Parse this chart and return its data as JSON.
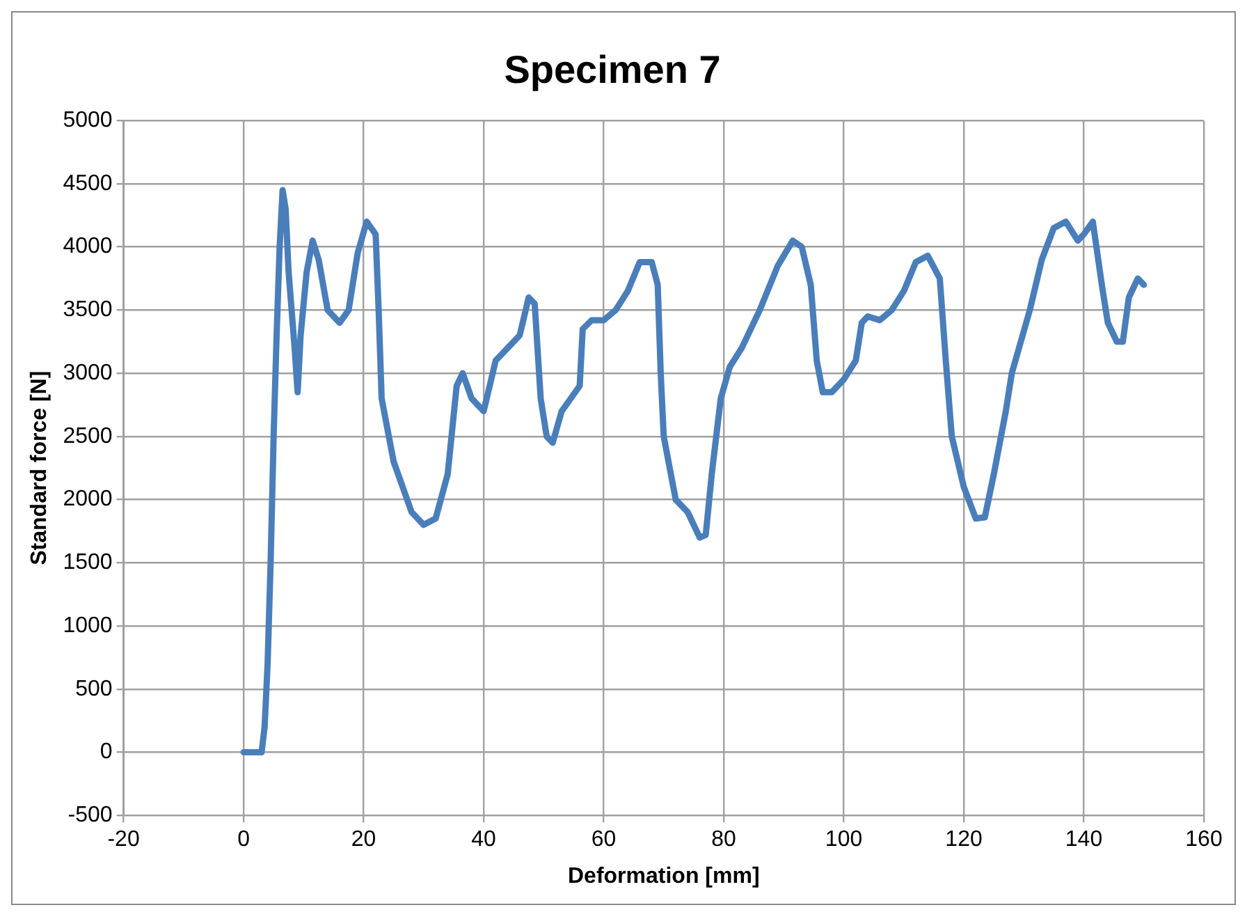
{
  "chart_data": {
    "type": "line",
    "title": "Specimen 7",
    "xlabel": "Deformation [mm]",
    "ylabel": "Standard force [N]",
    "xlim": [
      -20,
      160
    ],
    "xticks": [
      -20,
      0,
      20,
      40,
      60,
      80,
      100,
      120,
      140,
      160
    ],
    "ylim": [
      -500,
      5000
    ],
    "yticks": [
      -500,
      0,
      500,
      1000,
      1500,
      2000,
      2500,
      3000,
      3500,
      4000,
      4500,
      5000
    ],
    "grid": true,
    "legend": false,
    "marker": "none",
    "line_style": "solid",
    "series": [
      {
        "color": "#4a7ebb",
        "x": [
          0,
          3,
          3.5,
          4,
          4.5,
          5,
          5.5,
          6,
          6.5,
          7,
          7.5,
          8.5,
          9,
          9.5,
          10.5,
          11.5,
          12.5,
          14,
          16,
          17.5,
          19,
          20.5,
          22,
          22.5,
          23,
          25,
          28,
          30,
          32,
          34,
          35.5,
          36.5,
          38,
          40,
          42,
          44,
          46,
          47.5,
          48.5,
          49.5,
          50.5,
          51.5,
          53,
          56,
          56.5,
          58,
          60,
          62,
          64,
          66,
          68,
          69,
          69.5,
          70,
          72,
          74,
          76,
          77,
          78,
          79.5,
          81,
          83,
          86,
          89,
          91.5,
          93,
          94.5,
          95.5,
          96.5,
          98,
          100,
          102,
          103,
          104,
          106,
          108,
          110,
          112,
          114,
          116,
          117,
          118,
          120,
          122,
          123.5,
          125,
          127,
          128,
          131,
          133,
          135,
          137,
          139,
          140,
          141.5,
          143,
          144,
          145.5,
          146.5,
          147.5,
          149,
          150
        ],
        "values": [
          0,
          0,
          200,
          700,
          1500,
          2500,
          3300,
          4000,
          4450,
          4300,
          3800,
          3200,
          2850,
          3300,
          3800,
          4050,
          3900,
          3500,
          3400,
          3500,
          3950,
          4200,
          4100,
          3500,
          2800,
          2300,
          1900,
          1800,
          1850,
          2200,
          2900,
          3000,
          2800,
          2700,
          3100,
          3200,
          3300,
          3600,
          3550,
          2800,
          2500,
          2450,
          2700,
          2900,
          3350,
          3420,
          3420,
          3500,
          3650,
          3880,
          3880,
          3700,
          3000,
          2500,
          2000,
          1900,
          1700,
          1720,
          2200,
          2800,
          3050,
          3200,
          3500,
          3850,
          4050,
          4000,
          3700,
          3100,
          2850,
          2850,
          2950,
          3100,
          3400,
          3450,
          3420,
          3500,
          3650,
          3880,
          3930,
          3750,
          3100,
          2500,
          2100,
          1850,
          1860,
          2200,
          2700,
          3000,
          3500,
          3900,
          4150,
          4200,
          4050,
          4100,
          4200,
          3700,
          3400,
          3250,
          3250,
          3600,
          3750,
          3700
        ]
      }
    ]
  }
}
